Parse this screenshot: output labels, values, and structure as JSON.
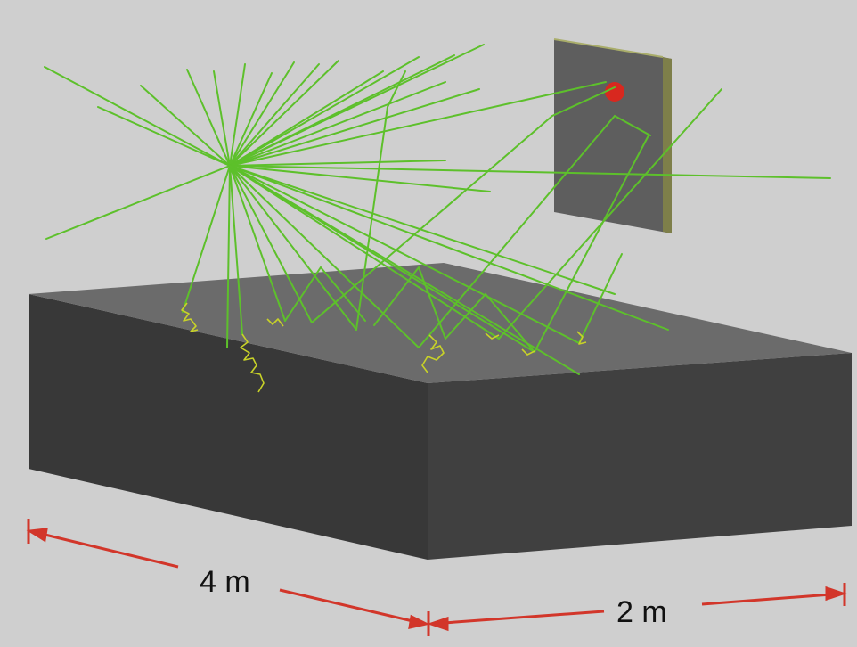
{
  "diagram": {
    "dimensions": {
      "length_label": "4 m",
      "width_label": "2 m"
    },
    "colors": {
      "background": "#cfcfcf",
      "block_top": "#6a6a6a",
      "block_front": "#383838",
      "block_side": "#404040",
      "panel_face": "#5e5e5e",
      "panel_edge": "#9aa042",
      "trajectory": "#5dc02b",
      "scatter_path": "#c8d228",
      "hit_marker": "#d8281f",
      "dimension_line": "#d2362a"
    }
  }
}
